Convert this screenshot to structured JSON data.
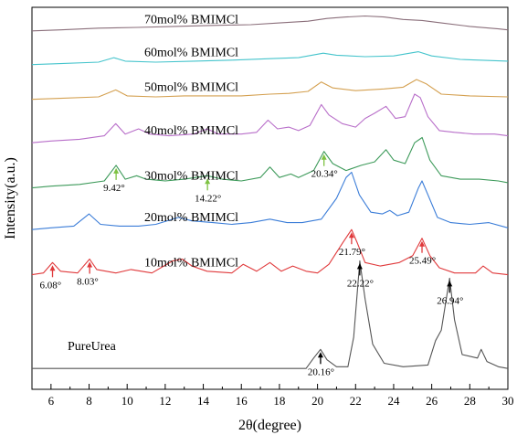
{
  "chart_data": {
    "type": "line",
    "xlabel": "2θ(degree)",
    "ylabel": "Intensity(a.u.)",
    "xlim": [
      5,
      30
    ],
    "x_ticks": [
      6,
      8,
      10,
      12,
      14,
      16,
      18,
      20,
      22,
      24,
      26,
      28,
      30
    ],
    "y_ticks_shown": false,
    "grid": false,
    "legend": "none",
    "series": [
      {
        "name": "PureUrea",
        "color": "#555555",
        "baseline": 0,
        "points": [
          [
            5,
            0
          ],
          [
            19.4,
            0
          ],
          [
            19.8,
            0.3
          ],
          [
            20.16,
            0.55
          ],
          [
            20.5,
            0.25
          ],
          [
            21.0,
            0.05
          ],
          [
            21.6,
            0.05
          ],
          [
            21.9,
            0.9
          ],
          [
            22.22,
            3.1
          ],
          [
            22.5,
            2.0
          ],
          [
            22.9,
            0.7
          ],
          [
            23.5,
            0.15
          ],
          [
            24.5,
            0.05
          ],
          [
            25.8,
            0.1
          ],
          [
            26.2,
            0.8
          ],
          [
            26.5,
            1.1
          ],
          [
            26.94,
            2.6
          ],
          [
            27.2,
            1.4
          ],
          [
            27.6,
            0.4
          ],
          [
            28.4,
            0.3
          ],
          [
            28.6,
            0.55
          ],
          [
            28.9,
            0.2
          ],
          [
            29.5,
            0.05
          ],
          [
            30,
            0
          ]
        ]
      },
      {
        "name": "10mol% BMIMCl",
        "color": "#e0393b",
        "baseline": 2.7,
        "points": [
          [
            5,
            2.7
          ],
          [
            5.6,
            2.75
          ],
          [
            6.08,
            3.05
          ],
          [
            6.5,
            2.8
          ],
          [
            7.4,
            2.75
          ],
          [
            8.03,
            3.15
          ],
          [
            8.4,
            2.85
          ],
          [
            9.4,
            2.75
          ],
          [
            10.2,
            2.85
          ],
          [
            11.3,
            2.75
          ],
          [
            12.4,
            3.1
          ],
          [
            12.9,
            3.15
          ],
          [
            13.4,
            2.95
          ],
          [
            14.2,
            2.8
          ],
          [
            15.5,
            2.75
          ],
          [
            16.1,
            3.0
          ],
          [
            16.8,
            2.8
          ],
          [
            17.5,
            3.05
          ],
          [
            18.1,
            2.8
          ],
          [
            18.7,
            2.95
          ],
          [
            19.4,
            2.8
          ],
          [
            20.0,
            2.75
          ],
          [
            20.6,
            3.0
          ],
          [
            21.3,
            3.6
          ],
          [
            21.79,
            4.0
          ],
          [
            22.1,
            3.6
          ],
          [
            22.5,
            3.05
          ],
          [
            23.3,
            2.95
          ],
          [
            24.3,
            3.05
          ],
          [
            25.0,
            3.25
          ],
          [
            25.49,
            3.75
          ],
          [
            25.9,
            3.25
          ],
          [
            26.4,
            2.9
          ],
          [
            27.2,
            2.75
          ],
          [
            28.3,
            2.75
          ],
          [
            28.7,
            2.95
          ],
          [
            29.2,
            2.75
          ],
          [
            30,
            2.7
          ]
        ]
      },
      {
        "name": "20mol% BMIMCl",
        "color": "#3b7dd8",
        "baseline": 4.0,
        "points": [
          [
            5,
            4.0
          ],
          [
            6.0,
            4.05
          ],
          [
            7.2,
            4.1
          ],
          [
            8.0,
            4.45
          ],
          [
            8.6,
            4.15
          ],
          [
            9.6,
            4.1
          ],
          [
            10.6,
            4.1
          ],
          [
            11.5,
            4.15
          ],
          [
            12.7,
            4.35
          ],
          [
            13.4,
            4.25
          ],
          [
            14.5,
            4.2
          ],
          [
            15.5,
            4.15
          ],
          [
            16.5,
            4.2
          ],
          [
            17.5,
            4.3
          ],
          [
            18.4,
            4.2
          ],
          [
            19.2,
            4.2
          ],
          [
            20.2,
            4.3
          ],
          [
            21.0,
            4.9
          ],
          [
            21.5,
            5.5
          ],
          [
            21.79,
            5.65
          ],
          [
            22.2,
            5.0
          ],
          [
            22.8,
            4.5
          ],
          [
            23.4,
            4.45
          ],
          [
            23.8,
            4.55
          ],
          [
            24.2,
            4.4
          ],
          [
            24.8,
            4.5
          ],
          [
            25.3,
            5.2
          ],
          [
            25.49,
            5.4
          ],
          [
            25.8,
            5.0
          ],
          [
            26.3,
            4.35
          ],
          [
            27.0,
            4.2
          ],
          [
            28.0,
            4.15
          ],
          [
            29.0,
            4.2
          ],
          [
            30,
            4.05
          ]
        ]
      },
      {
        "name": "30mol% BMIMCl",
        "color": "#3d9a5a",
        "baseline": 5.2,
        "points": [
          [
            5,
            5.2
          ],
          [
            6.0,
            5.25
          ],
          [
            7.5,
            5.3
          ],
          [
            8.8,
            5.4
          ],
          [
            9.42,
            5.85
          ],
          [
            9.9,
            5.45
          ],
          [
            10.5,
            5.55
          ],
          [
            11.0,
            5.45
          ],
          [
            12.0,
            5.4
          ],
          [
            13.0,
            5.45
          ],
          [
            14.22,
            5.55
          ],
          [
            15.0,
            5.45
          ],
          [
            16.0,
            5.4
          ],
          [
            17.0,
            5.5
          ],
          [
            17.5,
            5.8
          ],
          [
            18.0,
            5.5
          ],
          [
            18.6,
            5.6
          ],
          [
            19.0,
            5.5
          ],
          [
            19.8,
            5.7
          ],
          [
            20.34,
            6.25
          ],
          [
            20.8,
            5.9
          ],
          [
            21.5,
            5.7
          ],
          [
            22.3,
            5.85
          ],
          [
            23.0,
            5.95
          ],
          [
            23.6,
            6.3
          ],
          [
            24.0,
            6.0
          ],
          [
            24.6,
            5.9
          ],
          [
            25.1,
            6.5
          ],
          [
            25.5,
            6.65
          ],
          [
            25.9,
            6.0
          ],
          [
            26.5,
            5.55
          ],
          [
            27.5,
            5.45
          ],
          [
            28.5,
            5.45
          ],
          [
            29.5,
            5.4
          ],
          [
            30,
            5.35
          ]
        ]
      },
      {
        "name": "40mol% BMIMCl",
        "color": "#b86ec9",
        "baseline": 6.5,
        "points": [
          [
            5,
            6.5
          ],
          [
            6.0,
            6.55
          ],
          [
            7.5,
            6.6
          ],
          [
            8.8,
            6.7
          ],
          [
            9.4,
            7.05
          ],
          [
            9.9,
            6.75
          ],
          [
            10.6,
            6.9
          ],
          [
            11.2,
            6.75
          ],
          [
            12.2,
            6.7
          ],
          [
            13.5,
            6.75
          ],
          [
            14.2,
            6.9
          ],
          [
            14.8,
            6.75
          ],
          [
            16.0,
            6.75
          ],
          [
            16.8,
            6.8
          ],
          [
            17.4,
            7.15
          ],
          [
            17.9,
            6.9
          ],
          [
            18.5,
            6.95
          ],
          [
            19.0,
            6.85
          ],
          [
            19.6,
            7.0
          ],
          [
            20.2,
            7.6
          ],
          [
            20.6,
            7.3
          ],
          [
            21.3,
            7.05
          ],
          [
            22.0,
            6.95
          ],
          [
            22.5,
            7.2
          ],
          [
            23.0,
            7.35
          ],
          [
            23.6,
            7.55
          ],
          [
            24.1,
            7.2
          ],
          [
            24.6,
            7.25
          ],
          [
            25.1,
            7.9
          ],
          [
            25.4,
            7.8
          ],
          [
            25.8,
            7.25
          ],
          [
            26.4,
            6.85
          ],
          [
            27.2,
            6.8
          ],
          [
            28.2,
            6.75
          ],
          [
            29.3,
            6.75
          ],
          [
            30,
            6.7
          ]
        ]
      },
      {
        "name": "50mol% BMIMCl",
        "color": "#d4a050",
        "baseline": 7.75,
        "points": [
          [
            5,
            7.75
          ],
          [
            6.5,
            7.78
          ],
          [
            8.5,
            7.82
          ],
          [
            9.4,
            8.02
          ],
          [
            10.0,
            7.85
          ],
          [
            11.5,
            7.82
          ],
          [
            13.0,
            7.85
          ],
          [
            14.5,
            7.85
          ],
          [
            16.0,
            7.85
          ],
          [
            17.5,
            7.9
          ],
          [
            18.5,
            7.92
          ],
          [
            19.5,
            7.98
          ],
          [
            20.2,
            8.25
          ],
          [
            20.8,
            8.08
          ],
          [
            22.0,
            8.0
          ],
          [
            23.5,
            8.05
          ],
          [
            24.5,
            8.1
          ],
          [
            25.2,
            8.32
          ],
          [
            25.7,
            8.2
          ],
          [
            26.5,
            7.9
          ],
          [
            28.0,
            7.85
          ],
          [
            30,
            7.82
          ]
        ]
      },
      {
        "name": "60mol% BMIMCl",
        "color": "#45c4cc",
        "baseline": 8.75,
        "points": [
          [
            5,
            8.75
          ],
          [
            6.5,
            8.78
          ],
          [
            8.5,
            8.82
          ],
          [
            9.3,
            8.95
          ],
          [
            9.9,
            8.85
          ],
          [
            11.5,
            8.82
          ],
          [
            13.5,
            8.85
          ],
          [
            15.5,
            8.88
          ],
          [
            17.5,
            8.92
          ],
          [
            19.0,
            8.95
          ],
          [
            20.3,
            9.08
          ],
          [
            21.0,
            9.02
          ],
          [
            22.5,
            8.98
          ],
          [
            24.0,
            9.0
          ],
          [
            25.3,
            9.12
          ],
          [
            26.0,
            9.0
          ],
          [
            27.5,
            8.9
          ],
          [
            30,
            8.85
          ]
        ]
      },
      {
        "name": "70mol% BMIMCl",
        "color": "#8a6e7a",
        "baseline": 9.7,
        "points": [
          [
            5,
            9.72
          ],
          [
            6.5,
            9.75
          ],
          [
            8.5,
            9.8
          ],
          [
            10.5,
            9.82
          ],
          [
            12.5,
            9.85
          ],
          [
            14.5,
            9.88
          ],
          [
            16.5,
            9.9
          ],
          [
            18.0,
            9.95
          ],
          [
            19.5,
            10.0
          ],
          [
            20.5,
            10.08
          ],
          [
            21.5,
            10.12
          ],
          [
            22.5,
            10.15
          ],
          [
            23.5,
            10.12
          ],
          [
            24.5,
            10.05
          ],
          [
            25.5,
            10.02
          ],
          [
            26.5,
            9.95
          ],
          [
            28.0,
            9.85
          ],
          [
            29.5,
            9.78
          ],
          [
            30,
            9.75
          ]
        ]
      }
    ],
    "annotations": [
      {
        "text": "20.16°",
        "x": 20.16,
        "y": 0.55,
        "color": "#000000"
      },
      {
        "text": "22.22°",
        "x": 22.22,
        "y": 3.1,
        "color": "#000000"
      },
      {
        "text": "26.94°",
        "x": 26.94,
        "y": 2.6,
        "color": "#000000"
      },
      {
        "text": "6.08°",
        "x": 6.08,
        "y": 3.05,
        "color": "#e0393b"
      },
      {
        "text": "8.03°",
        "x": 8.03,
        "y": 3.15,
        "color": "#e0393b"
      },
      {
        "text": "21.79°",
        "x": 21.79,
        "y": 4.0,
        "color": "#e0393b"
      },
      {
        "text": "25.49°",
        "x": 25.49,
        "y": 3.75,
        "color": "#e0393b"
      },
      {
        "text": "9.42°",
        "x": 9.42,
        "y": 5.85,
        "color": "#7ec242"
      },
      {
        "text": "14.22°",
        "x": 14.22,
        "y": 5.55,
        "color": "#7ec242"
      },
      {
        "text": "20.34°",
        "x": 20.34,
        "y": 6.25,
        "color": "#7ec242"
      }
    ]
  }
}
